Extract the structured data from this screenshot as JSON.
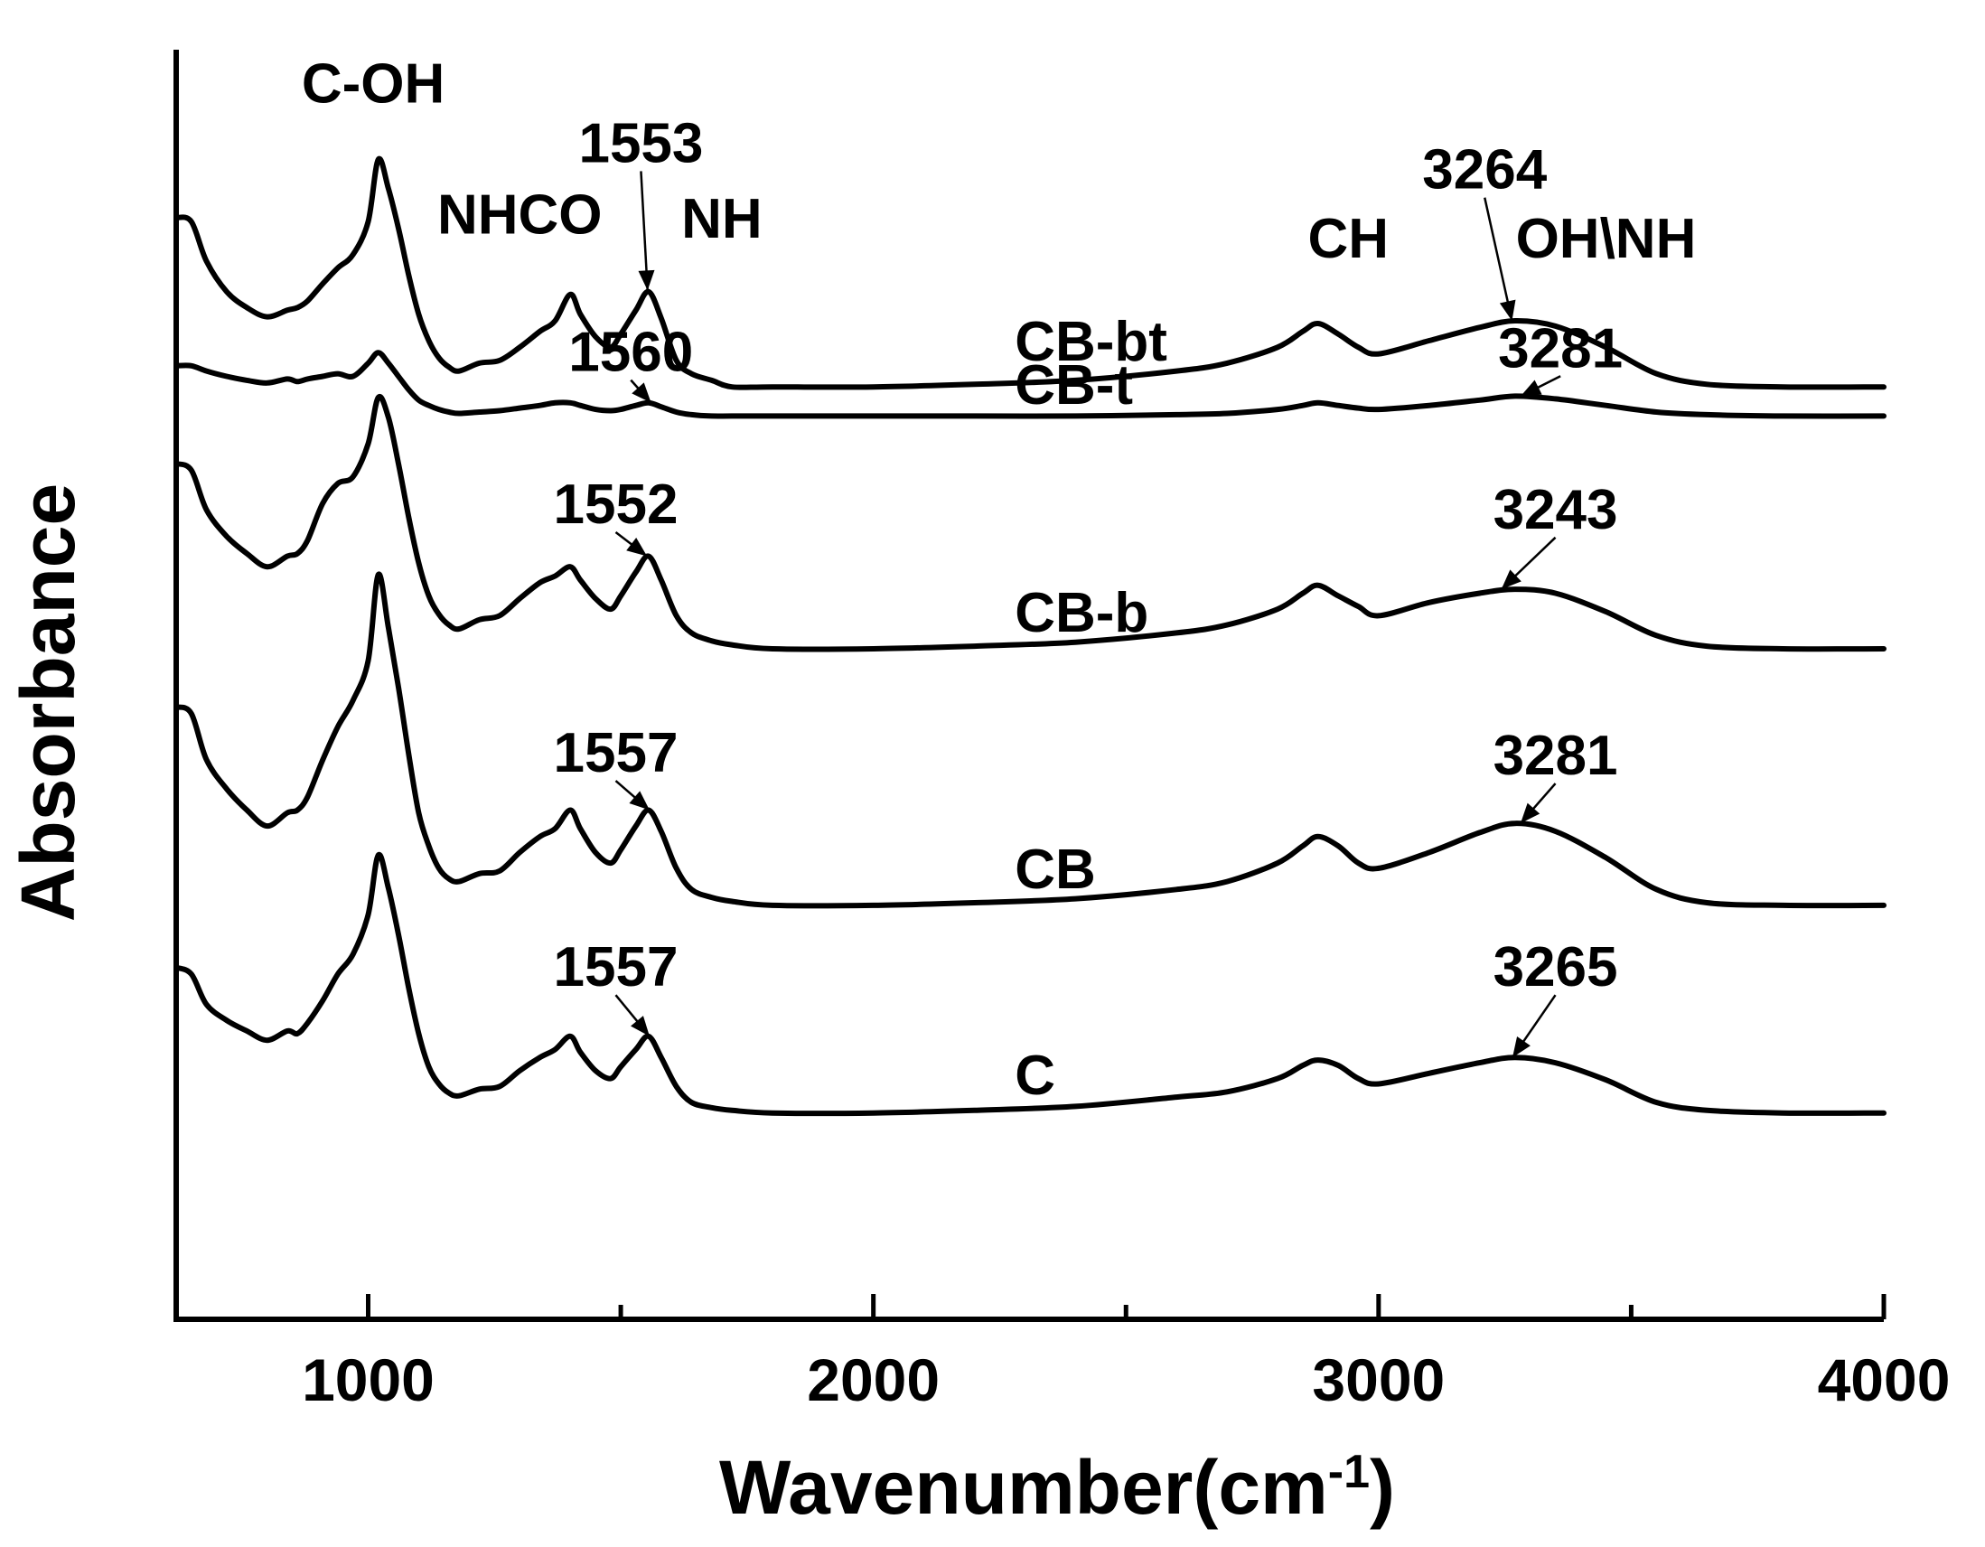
{
  "chart_data": {
    "type": "line",
    "title": "",
    "xlabel": "Wavenumber(cm",
    "xlabel_sup": "-1",
    "xlabel_close": ")",
    "ylabel": "Absorbance",
    "xlim": [
      620,
      4000
    ],
    "x_ticks": [
      1000,
      2000,
      3000,
      4000
    ],
    "y_ticks": false,
    "grid": false,
    "legend": "none",
    "x_grid": [
      620,
      650,
      680,
      720,
      760,
      800,
      840,
      860,
      880,
      910,
      940,
      970,
      1000,
      1020,
      1040,
      1060,
      1080,
      1100,
      1120,
      1140,
      1160,
      1180,
      1220,
      1260,
      1300,
      1340,
      1370,
      1400,
      1420,
      1450,
      1480,
      1500,
      1530,
      1555,
      1580,
      1610,
      1640,
      1680,
      1720,
      1800,
      2000,
      2200,
      2400,
      2600,
      2700,
      2800,
      2850,
      2880,
      2920,
      2960,
      3000,
      3100,
      3200,
      3270,
      3350,
      3450,
      3550,
      3650,
      3800,
      4000
    ],
    "series": [
      {
        "name": "CB-bt",
        "offset": 7.05,
        "values": [
          1.28,
          1.25,
          0.95,
          0.72,
          0.6,
          0.53,
          0.58,
          0.6,
          0.65,
          0.78,
          0.9,
          1.0,
          1.25,
          1.72,
          1.5,
          1.2,
          0.85,
          0.55,
          0.35,
          0.22,
          0.15,
          0.12,
          0.18,
          0.2,
          0.3,
          0.42,
          0.5,
          0.7,
          0.55,
          0.38,
          0.3,
          0.4,
          0.58,
          0.72,
          0.52,
          0.2,
          0.1,
          0.05,
          0.0,
          0.0,
          0.0,
          0.02,
          0.05,
          0.12,
          0.18,
          0.3,
          0.42,
          0.48,
          0.4,
          0.3,
          0.25,
          0.35,
          0.45,
          0.5,
          0.46,
          0.3,
          0.1,
          0.02,
          0.0,
          0.0
        ]
      },
      {
        "name": "CB-t",
        "offset": 6.83,
        "values": [
          0.38,
          0.38,
          0.34,
          0.3,
          0.27,
          0.25,
          0.28,
          0.26,
          0.28,
          0.3,
          0.32,
          0.3,
          0.4,
          0.48,
          0.4,
          0.3,
          0.2,
          0.12,
          0.08,
          0.05,
          0.03,
          0.02,
          0.03,
          0.04,
          0.06,
          0.08,
          0.1,
          0.1,
          0.08,
          0.05,
          0.04,
          0.05,
          0.08,
          0.1,
          0.07,
          0.03,
          0.01,
          0.0,
          0.0,
          0.0,
          0.0,
          0.0,
          0.0,
          0.01,
          0.02,
          0.05,
          0.08,
          0.1,
          0.08,
          0.06,
          0.05,
          0.08,
          0.12,
          0.15,
          0.13,
          0.08,
          0.03,
          0.01,
          0.0,
          0.0
        ]
      },
      {
        "name": "CB-b",
        "offset": 5.07,
        "values": [
          1.4,
          1.35,
          1.05,
          0.85,
          0.72,
          0.62,
          0.7,
          0.72,
          0.82,
          1.1,
          1.25,
          1.3,
          1.55,
          1.9,
          1.75,
          1.4,
          1.0,
          0.65,
          0.4,
          0.26,
          0.18,
          0.15,
          0.22,
          0.25,
          0.38,
          0.5,
          0.55,
          0.62,
          0.52,
          0.38,
          0.3,
          0.4,
          0.58,
          0.7,
          0.52,
          0.25,
          0.12,
          0.06,
          0.03,
          0.0,
          0.0,
          0.02,
          0.05,
          0.12,
          0.18,
          0.3,
          0.42,
          0.48,
          0.4,
          0.32,
          0.25,
          0.35,
          0.42,
          0.45,
          0.42,
          0.28,
          0.1,
          0.02,
          0.0,
          0.0
        ]
      },
      {
        "name": "CB",
        "offset": 3.13,
        "values": [
          1.5,
          1.45,
          1.1,
          0.88,
          0.72,
          0.6,
          0.7,
          0.72,
          0.82,
          1.1,
          1.35,
          1.55,
          1.85,
          2.5,
          2.1,
          1.65,
          1.15,
          0.7,
          0.45,
          0.28,
          0.2,
          0.18,
          0.24,
          0.26,
          0.4,
          0.52,
          0.58,
          0.72,
          0.58,
          0.4,
          0.32,
          0.42,
          0.6,
          0.72,
          0.56,
          0.28,
          0.12,
          0.06,
          0.03,
          0.0,
          0.0,
          0.02,
          0.05,
          0.12,
          0.18,
          0.32,
          0.45,
          0.52,
          0.45,
          0.32,
          0.28,
          0.4,
          0.55,
          0.62,
          0.56,
          0.36,
          0.12,
          0.02,
          0.0,
          0.0
        ]
      },
      {
        "name": "C",
        "offset": 1.56,
        "values": [
          1.1,
          1.05,
          0.82,
          0.7,
          0.62,
          0.55,
          0.62,
          0.6,
          0.68,
          0.85,
          1.05,
          1.2,
          1.5,
          1.95,
          1.7,
          1.35,
          0.95,
          0.6,
          0.35,
          0.22,
          0.15,
          0.13,
          0.18,
          0.2,
          0.32,
          0.42,
          0.48,
          0.58,
          0.46,
          0.32,
          0.26,
          0.35,
          0.48,
          0.58,
          0.42,
          0.2,
          0.08,
          0.04,
          0.02,
          0.0,
          0.0,
          0.02,
          0.05,
          0.12,
          0.16,
          0.26,
          0.36,
          0.4,
          0.36,
          0.26,
          0.22,
          0.3,
          0.38,
          0.42,
          0.38,
          0.25,
          0.08,
          0.02,
          0.0,
          0.0
        ]
      }
    ],
    "series_label_pos": [
      {
        "name": "CB-bt",
        "x": 2280,
        "y": 7.25
      },
      {
        "name": "CB-t",
        "x": 2280,
        "y": 6.92
      },
      {
        "name": "CB-b",
        "x": 2280,
        "y": 5.2
      },
      {
        "name": "CB",
        "x": 2280,
        "y": 3.26
      },
      {
        "name": "C",
        "x": 2280,
        "y": 1.7
      }
    ],
    "annotations": [
      {
        "text": "C-OH",
        "x": 1010,
        "y": 9.2,
        "arrow": false
      },
      {
        "text": "NHCO",
        "x": 1300,
        "y": 8.21,
        "arrow": false
      },
      {
        "text": "1553",
        "x": 1540,
        "y": 8.75,
        "arrow": true,
        "arrow_to_x": 1553,
        "arrow_to_y": 7.78
      },
      {
        "text": "NH",
        "x": 1700,
        "y": 8.18,
        "arrow": false
      },
      {
        "text": "1560",
        "x": 1520,
        "y": 7.17,
        "arrow": true,
        "arrow_to_x": 1560,
        "arrow_to_y": 6.93
      },
      {
        "text": "CH",
        "x": 2940,
        "y": 8.03,
        "arrow": false
      },
      {
        "text": "3264",
        "x": 3210,
        "y": 8.55,
        "arrow": true,
        "arrow_to_x": 3264,
        "arrow_to_y": 7.55
      },
      {
        "text": "OH\\NH",
        "x": 3450,
        "y": 8.03,
        "arrow": false
      },
      {
        "text": "3281",
        "x": 3360,
        "y": 7.2,
        "arrow": true,
        "arrow_to_x": 3281,
        "arrow_to_y": 6.98
      },
      {
        "text": "1552",
        "x": 1490,
        "y": 6.02,
        "arrow": true,
        "arrow_to_x": 1552,
        "arrow_to_y": 5.77
      },
      {
        "text": "3243",
        "x": 3350,
        "y": 5.98,
        "arrow": true,
        "arrow_to_x": 3243,
        "arrow_to_y": 5.52
      },
      {
        "text": "1557",
        "x": 1490,
        "y": 4.14,
        "arrow": true,
        "arrow_to_x": 1557,
        "arrow_to_y": 3.85
      },
      {
        "text": "3281",
        "x": 3350,
        "y": 4.12,
        "arrow": true,
        "arrow_to_x": 3281,
        "arrow_to_y": 3.75
      },
      {
        "text": "1557",
        "x": 1490,
        "y": 2.52,
        "arrow": true,
        "arrow_to_x": 1557,
        "arrow_to_y": 2.14
      },
      {
        "text": "3265",
        "x": 3350,
        "y": 2.52,
        "arrow": true,
        "arrow_to_x": 3265,
        "arrow_to_y": 1.98
      }
    ]
  }
}
